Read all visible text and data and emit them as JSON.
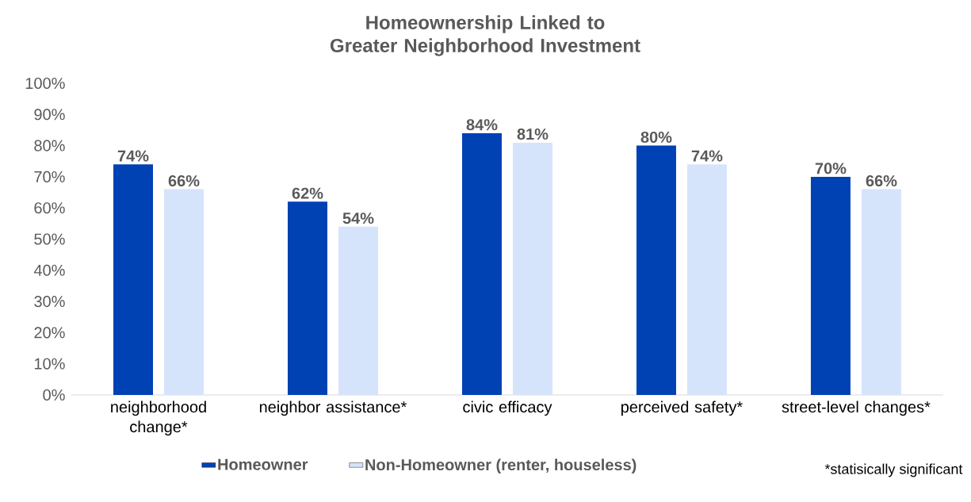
{
  "chart_data": {
    "type": "bar",
    "title": "Homeownership Linked to Greater Neighborhood Investment",
    "categories": [
      "neighborhood change*",
      "neighbor assistance*",
      "civic efficacy",
      "perceived safety*",
      "street-level changes*"
    ],
    "series": [
      {
        "name": "Homeowner",
        "color": "#0041b4",
        "values": [
          74,
          62,
          84,
          80,
          70
        ],
        "value_labels": [
          "74%",
          "62%",
          "84%",
          "80%",
          "70%"
        ]
      },
      {
        "name": "Non-Homeowner (renter, houseless)",
        "color": "#d6e4fb",
        "values": [
          66,
          54,
          81,
          74,
          66
        ],
        "value_labels": [
          "66%",
          "54%",
          "81%",
          "74%",
          "66%"
        ]
      }
    ],
    "ylim": [
      0,
      100
    ],
    "yticks": [
      {
        "value": 0,
        "label": "0%"
      },
      {
        "value": 10,
        "label": "10%"
      },
      {
        "value": 20,
        "label": "20%"
      },
      {
        "value": 30,
        "label": "30%"
      },
      {
        "value": 40,
        "label": "40%"
      },
      {
        "value": 50,
        "label": "50%"
      },
      {
        "value": 60,
        "label": "60%"
      },
      {
        "value": 70,
        "label": "70%"
      },
      {
        "value": 80,
        "label": "80%"
      },
      {
        "value": 90,
        "label": "90%"
      },
      {
        "value": 100,
        "label": "100%"
      }
    ],
    "grid": false,
    "legend": "bottom",
    "annotations": [
      "*statisically significant"
    ]
  }
}
